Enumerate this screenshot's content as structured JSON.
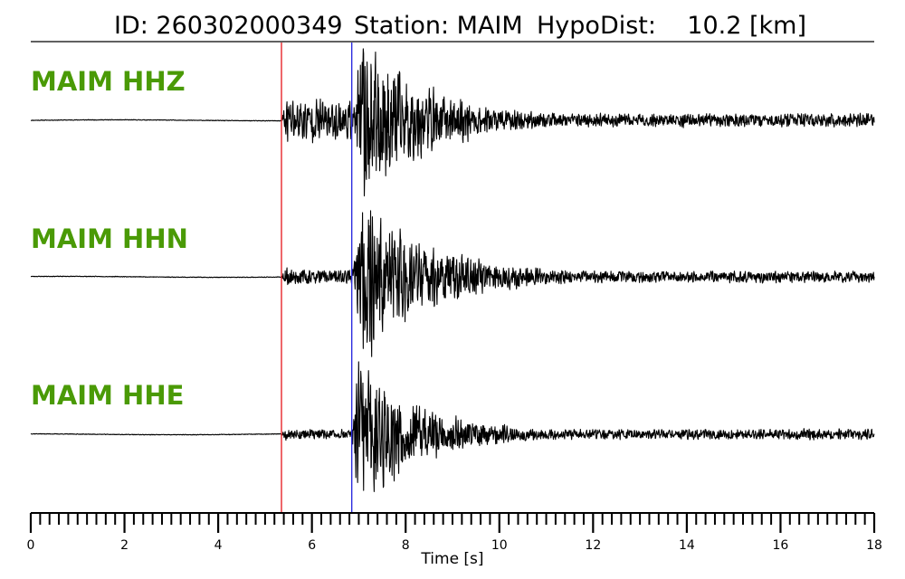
{
  "title": {
    "id_text": "ID: 260302000349",
    "station_text": "Station: MAIM",
    "dist_text": "HypoDist:    10.2 [km]"
  },
  "colors": {
    "label": "#4a9a06",
    "trace": "#000000",
    "p_pick": "#e8262a",
    "s_pick": "#2d2de0"
  },
  "chart_data": {
    "type": "line",
    "xlabel": "Time [s]",
    "xlim": [
      0,
      18
    ],
    "major_ticks": [
      0,
      2,
      4,
      6,
      8,
      10,
      12,
      14,
      16,
      18
    ],
    "minor_tick_step": 0.2,
    "grid": false,
    "picks": [
      {
        "phase": "P",
        "time": 5.35,
        "color": "#e8262a"
      },
      {
        "phase": "S",
        "time": 6.85,
        "color": "#2d2de0"
      }
    ],
    "series": [
      {
        "name": "MAIM HHZ",
        "onset": 5.35,
        "p_amp": 0.3,
        "s_onset": 6.85,
        "s_amp": 0.95,
        "peak_time": 7.1,
        "coda_decay": 1.4,
        "noise": 0.05,
        "seed": 11
      },
      {
        "name": "MAIM HHN",
        "onset": 5.35,
        "p_amp": 0.1,
        "s_onset": 6.85,
        "s_amp": 0.92,
        "peak_time": 7.1,
        "coda_decay": 1.5,
        "noise": 0.045,
        "seed": 23
      },
      {
        "name": "MAIM HHE",
        "onset": 5.35,
        "p_amp": 0.07,
        "s_onset": 6.85,
        "s_amp": 0.88,
        "peak_time": 7.0,
        "coda_decay": 1.3,
        "noise": 0.04,
        "seed": 37
      }
    ]
  }
}
